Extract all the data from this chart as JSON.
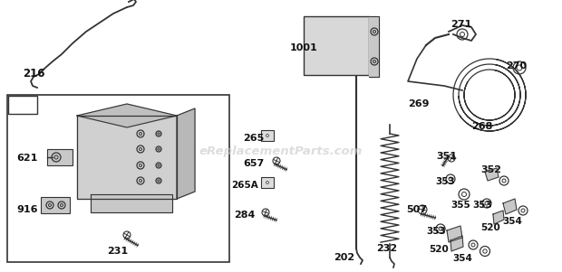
{
  "bg_color": "#ffffff",
  "line_color": "#333333",
  "text_color": "#111111",
  "watermark": "eReplacementParts.com",
  "watermark_color": "#cccccc",
  "fig_w": 6.2,
  "fig_h": 3.01,
  "dpi": 100
}
